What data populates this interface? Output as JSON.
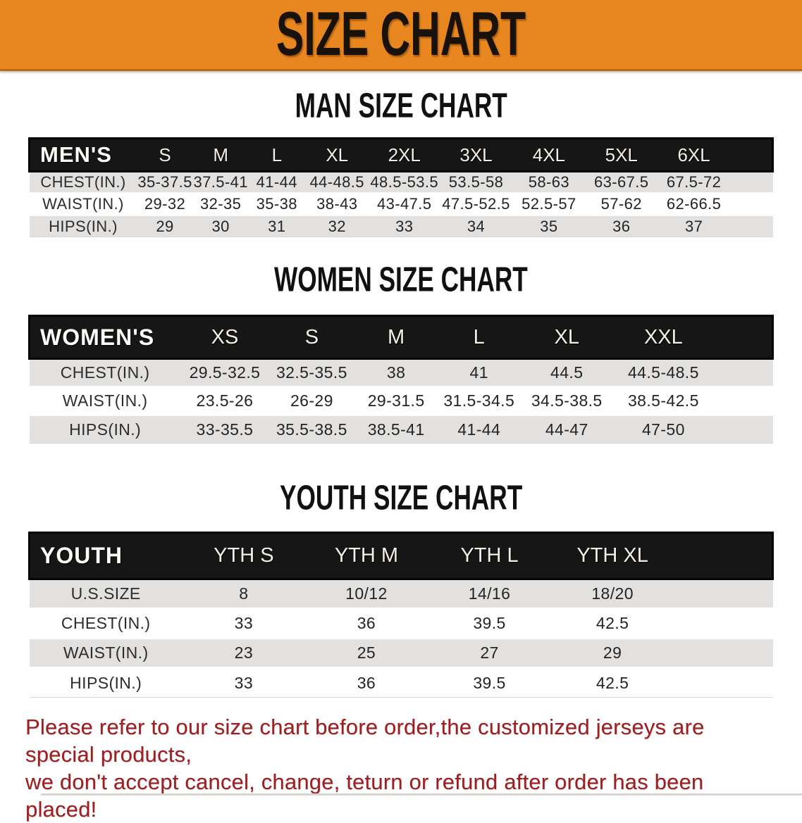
{
  "banner": {
    "title": "SIZE CHART",
    "bg_color": "#e8861f",
    "text_color": "#18120a"
  },
  "sections": [
    {
      "title": "MAN SIZE CHART",
      "header_label": "MEN'S",
      "columns": [
        "S",
        "M",
        "L",
        "XL",
        "2XL",
        "3XL",
        "4XL",
        "5XL",
        "6XL"
      ],
      "rows": [
        {
          "label": "CHEST(IN.)",
          "values": [
            "35-37.5",
            "37.5-41",
            "41-44",
            "44-48.5",
            "48.5-53.5",
            "53.5-58",
            "58-63",
            "63-67.5",
            "67.5-72"
          ]
        },
        {
          "label": "WAIST(IN.)",
          "values": [
            "29-32",
            "32-35",
            "35-38",
            "38-43",
            "43-47.5",
            "47.5-52.5",
            "52.5-57",
            "57-62",
            "62-66.5"
          ]
        },
        {
          "label": "HIPS(IN.)",
          "values": [
            "29",
            "30",
            "31",
            "32",
            "33",
            "34",
            "35",
            "36",
            "37"
          ]
        }
      ]
    },
    {
      "title": "WOMEN SIZE CHART",
      "header_label": "WOMEN'S",
      "columns": [
        "XS",
        "S",
        "M",
        "L",
        "XL",
        "XXL"
      ],
      "rows": [
        {
          "label": "CHEST(IN.)",
          "values": [
            "29.5-32.5",
            "32.5-35.5",
            "38",
            "41",
            "44.5",
            "44.5-48.5"
          ]
        },
        {
          "label": "WAIST(IN.)",
          "values": [
            "23.5-26",
            "26-29",
            "29-31.5",
            "31.5-34.5",
            "34.5-38.5",
            "38.5-42.5"
          ]
        },
        {
          "label": "HIPS(IN.)",
          "values": [
            "33-35.5",
            "35.5-38.5",
            "38.5-41",
            "41-44",
            "44-47",
            "47-50"
          ]
        }
      ]
    },
    {
      "title": "YOUTH SIZE CHART",
      "header_label": "YOUTH",
      "columns": [
        "YTH S",
        "YTH M",
        "YTH L",
        "YTH XL"
      ],
      "rows": [
        {
          "label": "U.S.SIZE",
          "values": [
            "8",
            "10/12",
            "14/16",
            "18/20"
          ]
        },
        {
          "label": "CHEST(IN.)",
          "values": [
            "33",
            "36",
            "39.5",
            "42.5"
          ]
        },
        {
          "label": "WAIST(IN.)",
          "values": [
            "23",
            "25",
            "27",
            "29"
          ]
        },
        {
          "label": "HIPS(IN.)",
          "values": [
            "33",
            "36",
            "39.5",
            "42.5"
          ]
        }
      ]
    }
  ],
  "disclaimer": {
    "line1": "Please refer to our size chart before order,the customized jerseys are special products,",
    "line2": "we don't accept cancel, change, teturn or refund after order has been placed!",
    "color": "#9e1f22"
  }
}
